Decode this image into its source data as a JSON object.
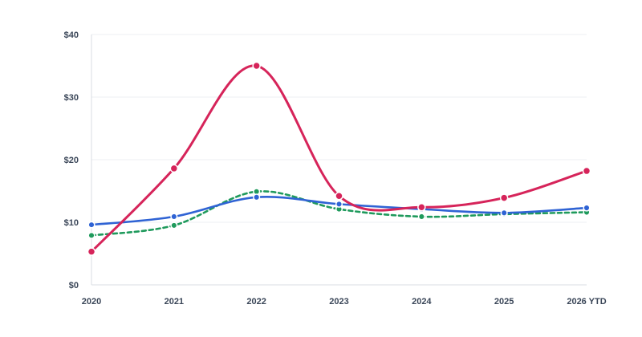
{
  "chart_data": {
    "type": "line",
    "title": "",
    "xlabel": "",
    "ylabel": "",
    "categories": [
      "2020",
      "2021",
      "2022",
      "2023",
      "2024",
      "2025",
      "2026 YTD"
    ],
    "ylim": [
      0,
      40
    ],
    "yticks": [
      0,
      10,
      20,
      30,
      40
    ],
    "ytick_labels": [
      "$0",
      "$10",
      "$20",
      "$30",
      "$40"
    ],
    "grid": true,
    "legend": "none",
    "series": [
      {
        "color": "#d6245a",
        "style": "solid",
        "values": [
          5.3,
          18.6,
          35.0,
          14.2,
          12.4,
          13.9,
          18.2
        ]
      },
      {
        "color": "#2f63d4",
        "style": "solid",
        "values": [
          9.6,
          10.9,
          14.0,
          12.9,
          12.1,
          11.5,
          12.3
        ]
      },
      {
        "color": "#1f9a5c",
        "style": "dashed",
        "values": [
          7.9,
          9.5,
          14.9,
          12.1,
          10.9,
          11.3,
          11.6
        ]
      }
    ]
  }
}
